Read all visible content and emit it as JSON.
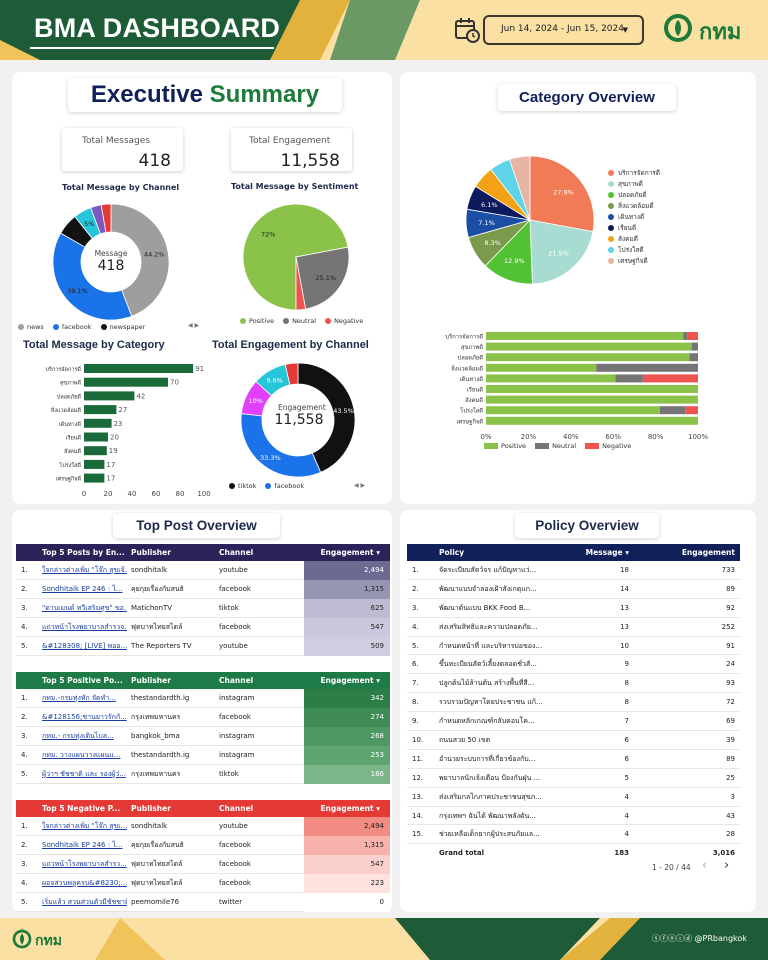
{
  "header": {
    "title": "BMA DASHBOARD",
    "date_range": "Jun 14, 2024 - Jun 15, 2024",
    "logo_text": "กทม"
  },
  "exec": {
    "title_part1": "Executive",
    "title_part2": "Summary",
    "kpi_messages_label": "Total Messages",
    "kpi_messages_value": "418",
    "kpi_engagement_label": "Total Engagement",
    "kpi_engagement_value": "11,558"
  },
  "channel_donut": {
    "title": "Total Message by Channel",
    "center_label": "Message",
    "center_value": "418",
    "legend": [
      "news",
      "facebook",
      "newspaper"
    ],
    "slices": [
      {
        "label": "newspaper",
        "value": 44.2,
        "color": "#9e9e9e",
        "text": "44.2%"
      },
      {
        "label": "facebook",
        "value": 39.1,
        "color": "#1a73e8",
        "text": "39.1%"
      },
      {
        "label": "other1",
        "value": 6.0,
        "color": "#111111",
        "text": "6%"
      },
      {
        "label": "other2",
        "value": 5.0,
        "color": "#26c6da",
        "text": "5%"
      },
      {
        "label": "other3",
        "value": 3.0,
        "color": "#7e57c2",
        "text": ""
      },
      {
        "label": "other4",
        "value": 2.7,
        "color": "#e53935",
        "text": ""
      }
    ]
  },
  "sentiment_pie": {
    "title": "Total Message by Sentiment",
    "legend": [
      "Positive",
      "Neutral",
      "Negative"
    ],
    "slices": [
      {
        "label": "Positive",
        "value": 72,
        "color": "#8bc34a",
        "text": "72%"
      },
      {
        "label": "Neutral",
        "value": 25.1,
        "color": "#757575",
        "text": "25.1%"
      },
      {
        "label": "Negative",
        "value": 2.9,
        "color": "#ef5350",
        "text": ""
      }
    ]
  },
  "category_bars": {
    "title": "Total Message by Category",
    "categories": [
      "บริการจัดการดี",
      "สุขภาพดี",
      "ปลอดภัยดี",
      "สิ่งแวดล้อมดี",
      "เดินทางดี",
      "เรียนดี",
      "สังคมดี",
      "โปร่งใสดี",
      "เศรษฐกิจดี"
    ],
    "values": [
      91,
      70,
      42,
      27,
      23,
      20,
      19,
      17,
      17
    ],
    "xticks": [
      "0",
      "20",
      "40",
      "60",
      "80",
      "100"
    ],
    "color": "#1b6b3a"
  },
  "engagement_donut": {
    "title": "Total Engagement by Channel",
    "center_label": "Engagement",
    "center_value": "11,558",
    "legend": [
      "tiktok",
      "facebook"
    ],
    "slices": [
      {
        "label": "tiktok",
        "value": 43.5,
        "color": "#111111",
        "text": "43.5%"
      },
      {
        "label": "facebook",
        "value": 33.3,
        "color": "#1a73e8",
        "text": "33.3%"
      },
      {
        "label": "c3",
        "value": 10.0,
        "color": "#e040fb",
        "text": "10%"
      },
      {
        "label": "c4",
        "value": 9.6,
        "color": "#26c6da",
        "text": "9.6%"
      },
      {
        "label": "c5",
        "value": 3.6,
        "color": "#e53935",
        "text": ""
      }
    ]
  },
  "category_overview": {
    "title": "Category Overview",
    "pie": [
      {
        "label": "บริการจัดการดี",
        "value": 27.9,
        "color": "#f07b56",
        "text": "27.9%"
      },
      {
        "label": "สุขภาพดี",
        "value": 21.5,
        "color": "#a8dcd2",
        "text": "21.5%"
      },
      {
        "label": "ปลอดภัยดี",
        "value": 12.9,
        "color": "#52c234",
        "text": "12.9%"
      },
      {
        "label": "สิ่งแวดล้อมดี",
        "value": 8.3,
        "color": "#7c9a4c",
        "text": "8.3%"
      },
      {
        "label": "เดินทางดี",
        "value": 7.1,
        "color": "#1a4fa3",
        "text": "7.1%"
      },
      {
        "label": "เรียนดี",
        "value": 6.1,
        "color": "#0d1b5e",
        "text": "6.1%"
      },
      {
        "label": "สังคมดี",
        "value": 5.7,
        "color": "#f3a215",
        "text": ""
      },
      {
        "label": "โปร่งใสดี",
        "value": 5.3,
        "color": "#5fd3e8",
        "text": ""
      },
      {
        "label": "เศรษฐกิจดี",
        "value": 5.2,
        "color": "#e8b4a4",
        "text": ""
      }
    ],
    "stacked": {
      "categories": [
        "บริการจัดการดี",
        "สุขภาพดี",
        "ปลอดภัยดี",
        "สิ่งแวดล้อมดี",
        "เดินทางดี",
        "เรียนดี",
        "สังคมดี",
        "โปร่งใสดี",
        "เศรษฐกิจดี"
      ],
      "positive": [
        93,
        97,
        96,
        52,
        61,
        100,
        100,
        82,
        100
      ],
      "neutral": [
        2,
        3,
        4,
        48,
        13,
        0,
        0,
        12,
        0
      ],
      "negative": [
        5,
        0,
        0,
        0,
        26,
        0,
        0,
        6,
        0
      ],
      "xticks": [
        "0%",
        "20%",
        "40%",
        "60%",
        "80%",
        "100%"
      ],
      "legend": [
        "Positive",
        "Neutral",
        "Negative"
      ],
      "colors": [
        "#8bc34a",
        "#757575",
        "#ef5350"
      ]
    }
  },
  "top_post": {
    "title": "Top Post Overview",
    "tables": [
      {
        "header_color": "#2c2159",
        "shade": [
          "#6d6a92",
          "#9795b4",
          "#bdbcd3",
          "#c9c8dc",
          "#cfcee1"
        ],
        "cols": [
          "Top 5 Posts by En...",
          "Publisher",
          "Channel",
          "Engagement ▾"
        ],
        "rows": [
          {
            "n": "1.",
            "post": "ใจกล่าวต่างเพิ่ม \"โจ๊ก สุขเจ้...",
            "pub": "sondhitalk",
            "ch": "youtube",
            "eng": "2,494"
          },
          {
            "n": "2.",
            "post": "Sondhitalk EP 246 : ไ...",
            "pub": "คุยกุยเรื่องกับสนธิ",
            "ch": "facebook",
            "eng": "1,315"
          },
          {
            "n": "3.",
            "post": "\"ดาบเมนต์ ทวีเสริมศุข\" ขอ...",
            "pub": "MatichonTV",
            "ch": "tiktok",
            "eng": "625"
          },
          {
            "n": "4.",
            "post": "แถวหน้าโรงพยาบาลสำรวจ...",
            "pub": "ฟุตบาทไทยสไตล์",
            "ch": "facebook",
            "eng": "547"
          },
          {
            "n": "5.",
            "post": "&#128308; [LIVE] พออ...",
            "pub": "The Reporters TV",
            "ch": "youtube",
            "eng": "509"
          }
        ]
      },
      {
        "header_color": "#1e7a47",
        "shade": [
          "#2e7d47",
          "#3f8b55",
          "#4f9763",
          "#5ea470",
          "#7cb58a"
        ],
        "cols": [
          "Top 5 Positive Po...",
          "Publisher",
          "Channel",
          "Engagement ▾"
        ],
        "rows": [
          {
            "n": "1.",
            "post": "กทม.-กรมทุ่งหัก จัดทำ...",
            "pub": "thestandardth.ig",
            "ch": "instagram",
            "eng": "342"
          },
          {
            "n": "2.",
            "post": "&#128156;ชานยาวรักกั...",
            "pub": "กรุงเทพมหานคร",
            "ch": "facebook",
            "eng": "274"
          },
          {
            "n": "3.",
            "post": "กทม.- กรมทุ่งเดินไบล...",
            "pub": "bangkok_bma",
            "ch": "instagram",
            "eng": "268"
          },
          {
            "n": "4.",
            "post": "กทม. วางแผนวางแผนแ...",
            "pub": "thestandardth.ig",
            "ch": "instagram",
            "eng": "253"
          },
          {
            "n": "5.",
            "post": "ผู้ว่าฯ ชัชชาติ และ รองผู้ว่...",
            "pub": "กรุงเทพมหานคร",
            "ch": "tiktok",
            "eng": "186"
          }
        ]
      },
      {
        "header_color": "#e53935",
        "shade": [
          "#f28b82",
          "#f7b2ac",
          "#fbd0cc",
          "#fde2e0",
          "#ffffff"
        ],
        "cols": [
          "Top 5 Negative P...",
          "Publisher",
          "Channel",
          "Engagement ▾"
        ],
        "rows": [
          {
            "n": "1.",
            "post": "ใจกล่าวต่างเพิ่ม \"โจ๊ก สุขเ...",
            "pub": "sondhitalk",
            "ch": "youtube",
            "eng": "2,494"
          },
          {
            "n": "2.",
            "post": "Sondhitalk EP 246 : ไ...",
            "pub": "คุยกุยเรื่องกับสนธิ",
            "ch": "facebook",
            "eng": "1,315"
          },
          {
            "n": "3.",
            "post": "แถวหน้าโรงพยาบาลสำรว...",
            "pub": "ฟุตบาทไทยสไตล์",
            "ch": "facebook",
            "eng": "547"
          },
          {
            "n": "4.",
            "post": "ผอจสวนพลูครบ&#8230;...",
            "pub": "ฟุตบาทไทยสไตล์",
            "ch": "facebook",
            "eng": "223"
          },
          {
            "n": "5.",
            "post": "เริ่มแล้ว สวนส่วนตัวมีชัชชาติ ...",
            "pub": "peemomile76",
            "ch": "twitter",
            "eng": "0"
          }
        ]
      }
    ]
  },
  "policy": {
    "title": "Policy Overview",
    "header_color": "#12205a",
    "cols": [
      "Policy",
      "Message ▾",
      "Engagement"
    ],
    "rows": [
      {
        "n": "1.",
        "p": "จัดระเบียบสัตว์จร แก้ปัญหาแว่...",
        "m": "18",
        "e": "733"
      },
      {
        "n": "2.",
        "p": "พัฒนาแบบจำลองเฝ้าสังเกตุแก...",
        "m": "14",
        "e": "89"
      },
      {
        "n": "3.",
        "p": "พัฒนาต้นแบบ BKK Food B...",
        "m": "13",
        "e": "92"
      },
      {
        "n": "4.",
        "p": "ส่งเสริมสิทธิและความปลอดภัย...",
        "m": "13",
        "e": "252"
      },
      {
        "n": "5.",
        "p": "กำหนดหน้าที่ และบริหารบ่อของ...",
        "m": "10",
        "e": "91"
      },
      {
        "n": "6.",
        "p": "ขึ้นทะเบียนสัตว์เลี้ยงตลอดชั่วสั...",
        "m": "9",
        "e": "24"
      },
      {
        "n": "7.",
        "p": "ปลูกต้นไม้ล้านต้น สร้างพื้นที่สี...",
        "m": "8",
        "e": "93"
      },
      {
        "n": "8.",
        "p": "รวบรวมปัญหาโดยประชาชน แก้...",
        "m": "8",
        "e": "72"
      },
      {
        "n": "9.",
        "p": "กำหนดหลักเกณฑ์กลับคอบโค...",
        "m": "7",
        "e": "69"
      },
      {
        "n": "10.",
        "p": "ถนนสวย 50 เขต",
        "m": "6",
        "e": "39"
      },
      {
        "n": "11.",
        "p": "อำนวยระบบการที่เกี่ยวข้องกับ...",
        "m": "6",
        "e": "89"
      },
      {
        "n": "12.",
        "p": "พยาบาลนักเจ้งเตือน ป้องกันฝุ่น ...",
        "m": "5",
        "e": "25"
      },
      {
        "n": "13.",
        "p": "ส่งเสริมกลไกภาคประชาชนสุขภ...",
        "m": "4",
        "e": "3"
      },
      {
        "n": "14.",
        "p": "กรุงเทพฯ ฉันได้ พัฒนาพลังดัน...",
        "m": "4",
        "e": "43"
      },
      {
        "n": "15.",
        "p": "ช่วยเหลือเด็กยากผู้ประสบภัยแล...",
        "m": "4",
        "e": "28"
      }
    ],
    "total_label": "Grand total",
    "total_m": "183",
    "total_e": "3,016",
    "pager": "1 - 20 / 44",
    "prev": "‹",
    "next": "›"
  },
  "footer": {
    "logo_text": "กทม",
    "social_handle": "@PRbangkok",
    "social_icons": "ⓢⓕⓞⓘⓓ"
  }
}
